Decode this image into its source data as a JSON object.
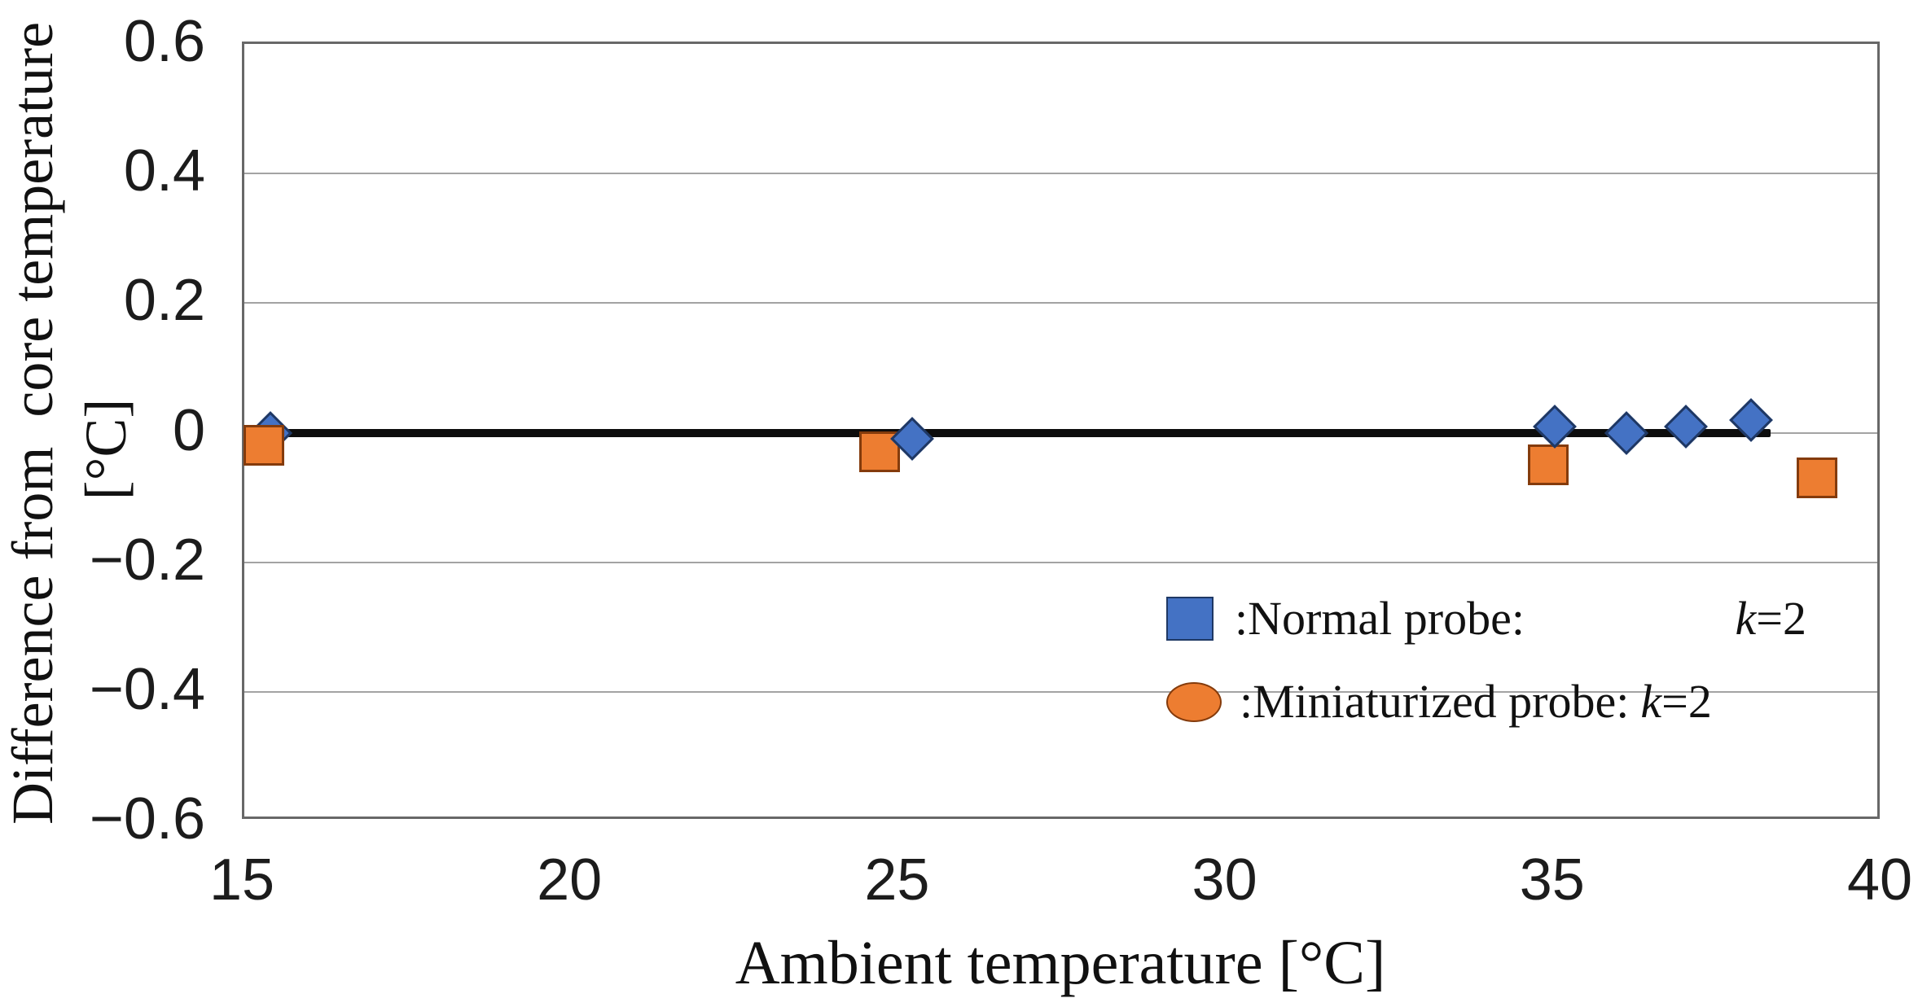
{
  "chart_data": {
    "type": "scatter",
    "title": "",
    "xlabel": "Ambient temperature [°C]",
    "ylabel": "Difference from  core temperature",
    "ylabel_units": "[°C]",
    "xlim": [
      15,
      40
    ],
    "ylim": [
      -0.6,
      0.6
    ],
    "grid": true,
    "legend_position": "inside-lower-right",
    "x_ticks": [
      {
        "value": 15,
        "label": "15"
      },
      {
        "value": 20,
        "label": "20"
      },
      {
        "value": 25,
        "label": "25"
      },
      {
        "value": 30,
        "label": "30"
      },
      {
        "value": 35,
        "label": "35"
      },
      {
        "value": 40,
        "label": "40"
      }
    ],
    "y_ticks": [
      {
        "value": 0.6,
        "label": "0.6"
      },
      {
        "value": 0.4,
        "label": "0.4"
      },
      {
        "value": 0.2,
        "label": "0.2"
      },
      {
        "value": 0,
        "label": "0"
      },
      {
        "value": -0.2,
        "label": "−0.2"
      },
      {
        "value": -0.4,
        "label": "−0.4"
      },
      {
        "value": -0.6,
        "label": "−0.6"
      }
    ],
    "reference_line": {
      "y": 0,
      "x_start": 15,
      "x_end": 38.3,
      "color": "#0d0d0d"
    },
    "series": [
      {
        "name": "Normal probe",
        "marker": "diamond",
        "fill": "#4472C4",
        "stroke": "#1F3864",
        "points": [
          {
            "x": 15.4,
            "y": 0.0
          },
          {
            "x": 25.2,
            "y": -0.01
          },
          {
            "x": 35.0,
            "y": 0.01
          },
          {
            "x": 36.1,
            "y": 0.0
          },
          {
            "x": 37.0,
            "y": 0.01
          },
          {
            "x": 38.0,
            "y": 0.02
          }
        ]
      },
      {
        "name": "Miniaturized probe",
        "marker": "square",
        "fill": "#ED7D31",
        "stroke": "#843B0C",
        "points": [
          {
            "x": 15.3,
            "y": -0.02
          },
          {
            "x": 24.7,
            "y": -0.03
          },
          {
            "x": 34.9,
            "y": -0.05
          },
          {
            "x": 39.0,
            "y": -0.07
          }
        ]
      }
    ],
    "legend": {
      "entries": [
        {
          "marker": "square",
          "fill": "#4472C4",
          "stroke": "#1F3864",
          "label": ":Normal probe:",
          "k_italic": "k",
          "k_rest": "=2"
        },
        {
          "marker": "ellipse",
          "fill": "#ED7D31",
          "stroke": "#843B0C",
          "label": ":Miniaturized probe:",
          "k_italic": "k",
          "k_rest": "=2"
        }
      ]
    }
  }
}
